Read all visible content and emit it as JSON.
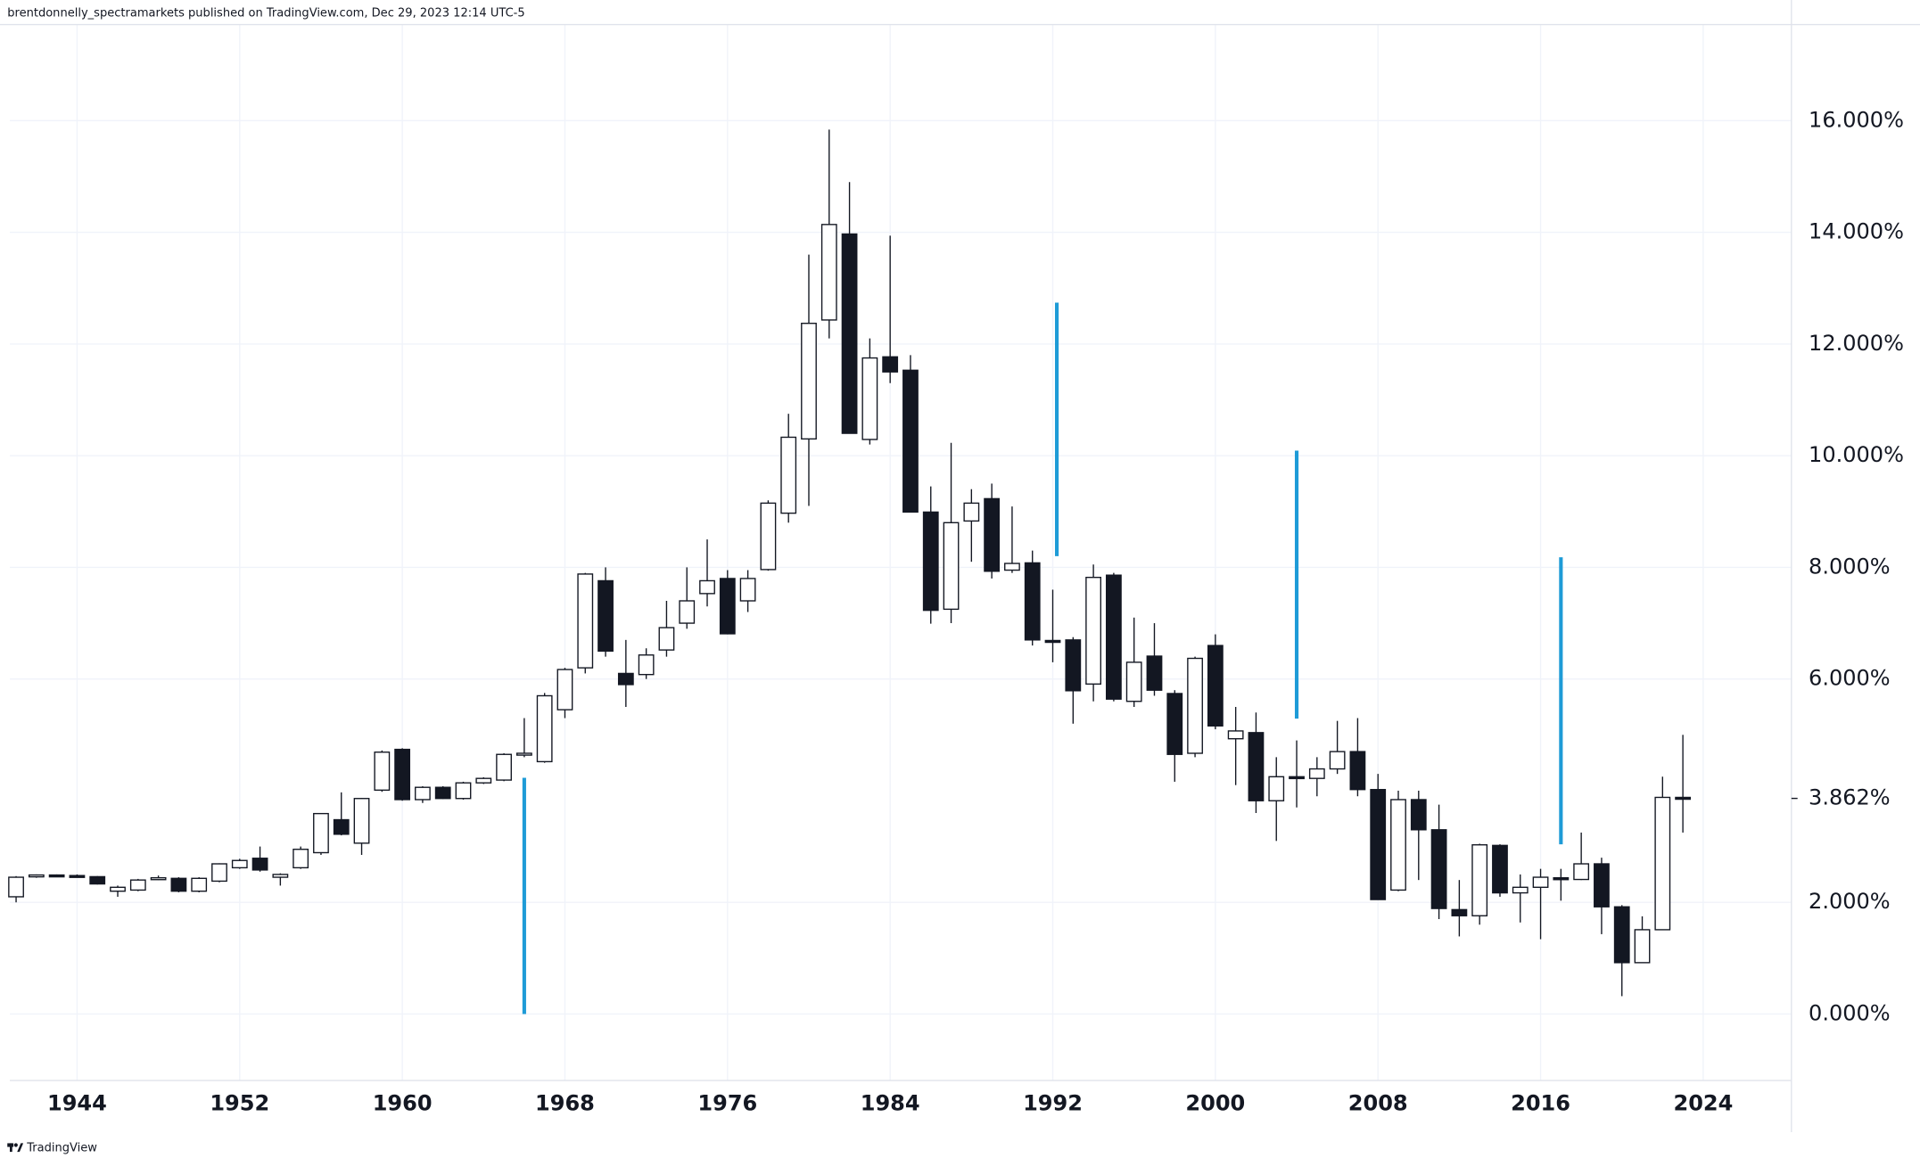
{
  "header": {
    "text": "brentdonnelly_spectramarkets published on TradingView.com, Dec 29, 2023 12:14 UTC-5"
  },
  "footer": {
    "brand": "TradingView"
  },
  "chart_data": {
    "type": "candlestick",
    "x": [
      1941,
      1942,
      1943,
      1944,
      1945,
      1946,
      1947,
      1948,
      1949,
      1950,
      1951,
      1952,
      1953,
      1954,
      1955,
      1956,
      1957,
      1958,
      1959,
      1960,
      1961,
      1962,
      1963,
      1964,
      1965,
      1966,
      1967,
      1968,
      1969,
      1970,
      1971,
      1972,
      1973,
      1974,
      1975,
      1976,
      1977,
      1978,
      1979,
      1980,
      1981,
      1982,
      1983,
      1984,
      1985,
      1986,
      1987,
      1988,
      1989,
      1990,
      1991,
      1992,
      1993,
      1994,
      1995,
      1996,
      1997,
      1998,
      1999,
      2000,
      2001,
      2002,
      2003,
      2004,
      2005,
      2006,
      2007,
      2008,
      2009,
      2010,
      2011,
      2012,
      2013,
      2014,
      2015,
      2016,
      2017,
      2018,
      2019,
      2020,
      2021,
      2022,
      2023
    ],
    "open": [
      2.1,
      2.47,
      2.49,
      2.48,
      2.46,
      2.2,
      2.22,
      2.42,
      2.43,
      2.2,
      2.38,
      2.62,
      2.79,
      2.45,
      2.62,
      2.89,
      3.48,
      3.06,
      4.01,
      4.74,
      3.84,
      4.06,
      3.86,
      4.14,
      4.19,
      4.65,
      4.52,
      5.45,
      6.2,
      7.76,
      6.1,
      6.08,
      6.52,
      7.0,
      7.53,
      7.8,
      7.4,
      7.96,
      8.97,
      10.3,
      12.43,
      13.97,
      10.29,
      11.77,
      11.53,
      8.99,
      7.25,
      8.83,
      9.23,
      7.95,
      8.08,
      6.69,
      6.7,
      5.91,
      7.86,
      5.6,
      6.41,
      5.74,
      4.67,
      6.6,
      4.93,
      5.04,
      3.82,
      4.25,
      4.22,
      4.39,
      4.7,
      4.02,
      2.22,
      3.84,
      3.3,
      1.87,
      1.76,
      3.02,
      2.17,
      2.27,
      2.44,
      2.41,
      2.69,
      1.92,
      0.92,
      1.51,
      3.88
    ],
    "high": [
      2.47,
      2.5,
      2.5,
      2.5,
      2.47,
      2.3,
      2.42,
      2.48,
      2.45,
      2.45,
      2.7,
      2.78,
      3.0,
      2.52,
      3.0,
      3.6,
      3.97,
      3.87,
      4.72,
      4.76,
      4.08,
      4.08,
      4.16,
      4.24,
      4.67,
      5.3,
      5.75,
      6.2,
      7.9,
      8.0,
      6.7,
      6.55,
      7.4,
      8.0,
      8.5,
      7.95,
      7.95,
      9.2,
      10.75,
      13.6,
      15.84,
      14.9,
      12.1,
      13.94,
      11.8,
      9.45,
      10.23,
      9.4,
      9.5,
      9.09,
      8.3,
      7.6,
      6.75,
      8.05,
      7.9,
      7.1,
      7.0,
      5.8,
      6.4,
      6.8,
      5.5,
      5.4,
      4.6,
      4.9,
      4.6,
      5.25,
      5.3,
      4.3,
      4.0,
      4.0,
      3.75,
      2.4,
      3.05,
      3.04,
      2.5,
      2.6,
      2.6,
      3.25,
      2.8,
      1.95,
      1.75,
      4.25,
      5.0
    ],
    "low": [
      2.0,
      2.44,
      2.46,
      2.46,
      2.32,
      2.1,
      2.2,
      2.4,
      2.18,
      2.18,
      2.36,
      2.6,
      2.55,
      2.3,
      2.6,
      2.85,
      3.2,
      2.85,
      3.98,
      3.82,
      3.78,
      3.85,
      3.84,
      4.12,
      4.17,
      4.6,
      4.5,
      5.3,
      6.1,
      6.4,
      5.5,
      6.0,
      6.4,
      6.9,
      7.3,
      6.8,
      7.2,
      7.94,
      8.8,
      9.1,
      12.1,
      10.4,
      10.2,
      11.3,
      8.99,
      6.99,
      7.0,
      8.1,
      7.8,
      7.9,
      6.6,
      6.3,
      5.2,
      5.6,
      5.6,
      5.5,
      5.7,
      4.16,
      4.6,
      5.1,
      4.1,
      3.6,
      3.1,
      3.7,
      3.9,
      4.3,
      3.9,
      2.05,
      2.2,
      2.4,
      1.7,
      1.39,
      1.6,
      2.1,
      1.64,
      1.34,
      2.03,
      2.4,
      1.43,
      0.32,
      0.92,
      1.5,
      3.25
    ],
    "close": [
      2.45,
      2.49,
      2.48,
      2.47,
      2.33,
      2.27,
      2.4,
      2.44,
      2.2,
      2.43,
      2.69,
      2.75,
      2.58,
      2.5,
      2.95,
      3.59,
      3.22,
      3.86,
      4.69,
      3.84,
      4.06,
      3.86,
      4.14,
      4.22,
      4.65,
      4.67,
      5.7,
      6.17,
      7.88,
      6.5,
      5.9,
      6.43,
      6.92,
      7.4,
      7.76,
      6.81,
      7.8,
      9.15,
      10.33,
      12.37,
      14.14,
      10.4,
      11.75,
      11.5,
      8.99,
      7.23,
      8.8,
      9.15,
      7.93,
      8.07,
      6.7,
      6.67,
      5.79,
      7.82,
      5.64,
      6.3,
      5.8,
      4.65,
      6.37,
      5.16,
      5.07,
      3.82,
      4.25,
      4.22,
      4.39,
      4.7,
      4.02,
      2.05,
      3.84,
      3.3,
      1.89,
      1.76,
      3.03,
      2.17,
      2.27,
      2.45,
      2.41,
      2.69,
      1.92,
      0.92,
      1.51,
      3.88,
      3.862
    ],
    "up_color": "#ffffff",
    "down_color": "#131722",
    "border_color": "#131722",
    "xlim": [
      1940.69,
      2028.34
    ],
    "xticks": [
      1944,
      1952,
      1960,
      1968,
      1976,
      1984,
      1992,
      2000,
      2008,
      2016,
      2024
    ],
    "ylim": [
      -1.19,
      17.72
    ],
    "yticks": [
      {
        "value": 0,
        "label": "0.000%"
      },
      {
        "value": 2,
        "label": "2.000%"
      },
      {
        "value": 6,
        "label": "6.000%"
      },
      {
        "value": 8,
        "label": "8.000%"
      },
      {
        "value": 10,
        "label": "10.000%"
      },
      {
        "value": 12,
        "label": "12.000%"
      },
      {
        "value": 14,
        "label": "14.000%"
      },
      {
        "value": 16,
        "label": "16.000%"
      }
    ],
    "last_price": {
      "value": 3.862,
      "label": "3.862%"
    },
    "grid": true,
    "annotation_color": "#1e9bd7",
    "annotations": [
      {
        "x": 1966,
        "y": [
          0,
          4.23
        ]
      },
      {
        "x": 1992.2,
        "y": [
          8.2,
          12.74
        ]
      },
      {
        "x": 2004,
        "y": [
          5.29,
          10.09
        ]
      },
      {
        "x": 2017,
        "y": [
          3.04,
          8.18
        ]
      }
    ]
  }
}
